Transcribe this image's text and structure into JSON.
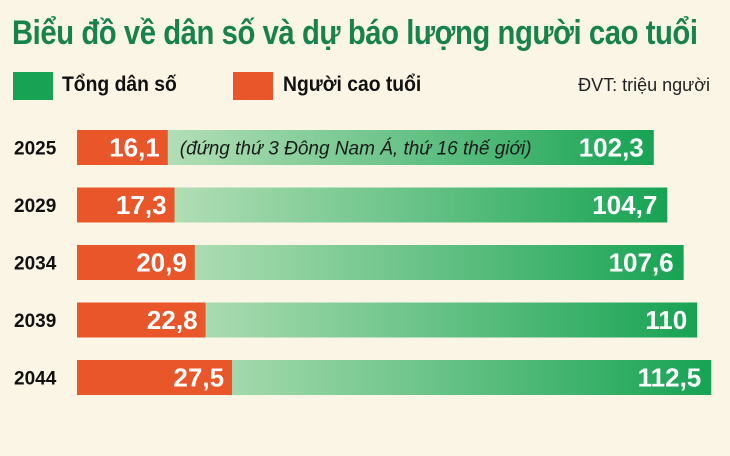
{
  "title": "Biểu đồ về dân số và dự báo lượng người cao tuổi",
  "legend": {
    "total_label": "Tổng dân số",
    "elderly_label": "Người cao tuổi",
    "unit": "ĐVT: triệu người"
  },
  "colors": {
    "total": "#17a353",
    "total_light": "#cfe9c7",
    "elderly": "#e8562a",
    "title": "#17834a",
    "background": "#fbf5e6"
  },
  "chart_data": {
    "type": "bar",
    "orientation": "horizontal",
    "categories": [
      "2025",
      "2029",
      "2034",
      "2039",
      "2044"
    ],
    "series": [
      {
        "name": "Tổng dân số",
        "values": [
          102.3,
          104.7,
          107.6,
          110,
          112.5
        ],
        "labels": [
          "102,3",
          "104,7",
          "107,6",
          "110",
          "112,5"
        ]
      },
      {
        "name": "Người cao tuổi",
        "values": [
          16.1,
          17.3,
          20.9,
          22.8,
          27.5
        ],
        "labels": [
          "16,1",
          "17,3",
          "20,9",
          "22,8",
          "27,5"
        ]
      }
    ],
    "annotation": "(đứng thứ 3 Đông Nam Á, thứ 16 thế giới)",
    "grid": false
  }
}
